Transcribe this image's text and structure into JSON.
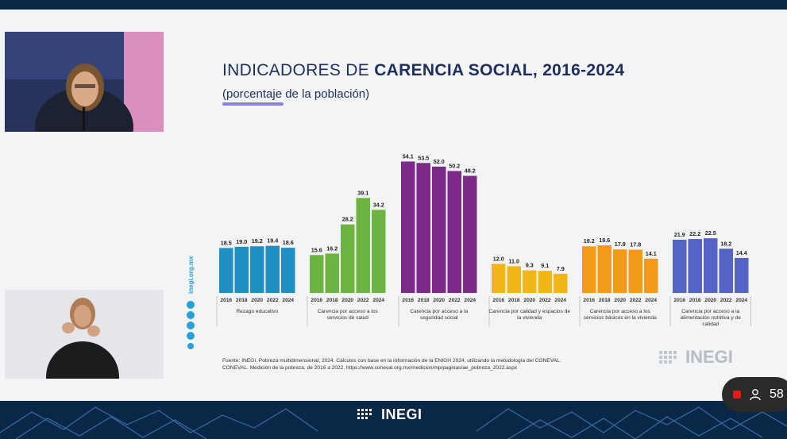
{
  "title": {
    "prefix": "INDICADORES DE ",
    "bold": "CARENCIA SOCIAL, 2016-2024"
  },
  "subtitle": "(porcentaje de la población)",
  "side_url": "inegi.org.mx",
  "source_note": {
    "line1": "Fuente: INEGI. Pobreza multidimensional, 2024. Cálculos con base en la información de la ENIGH 2024, utilizando la metodología del CONEVAL.",
    "line2": "CONEVAL. Medición de la pobreza, de 2016 a 2022. https://www.coneval.org.mx/medicion/mp/paginas/ae_pobreza_2022.aspx"
  },
  "brand": {
    "slide_logo": "INEGI",
    "bottom_logo": "INEGI"
  },
  "viewer_count": "58",
  "colors": {
    "rezago": "#1f8fc4",
    "salud": "#6db33f",
    "seguridad": "#7b2a8a",
    "vivienda": "#f2b619",
    "servicios": "#f39a1a",
    "alimentacion": "#5563c4",
    "title": "#1f2f5c",
    "underline": "#8b7fe6",
    "frame": "#0b2748"
  },
  "chart_data": {
    "type": "bar",
    "title": "",
    "ylim": [
      0,
      60
    ],
    "years": [
      "2016",
      "2018",
      "2020",
      "2022",
      "2024"
    ],
    "groups": [
      {
        "name": "Rezago educativo",
        "label_lines": [
          "Rezago educativo"
        ],
        "color_key": "rezago",
        "values": [
          18.5,
          19.0,
          19.2,
          19.4,
          18.6
        ]
      },
      {
        "name": "Carencia por acceso a los servicios de salud",
        "label_lines": [
          "Carencia por acceso a los",
          "servicios de salud"
        ],
        "color_key": "salud",
        "values": [
          15.6,
          16.2,
          28.2,
          39.1,
          34.2
        ]
      },
      {
        "name": "Carencia por acceso a la seguridad social",
        "label_lines": [
          "Carencia por acceso a la",
          "seguridad social"
        ],
        "color_key": "seguridad",
        "values": [
          54.1,
          53.5,
          52.0,
          50.2,
          48.2
        ]
      },
      {
        "name": "Carencia por calidad y espacios de la vivienda",
        "label_lines": [
          "Carencia por calidad y espacios de",
          "la vivienda"
        ],
        "color_key": "vivienda",
        "values": [
          12.0,
          11.0,
          9.3,
          9.1,
          7.9
        ]
      },
      {
        "name": "Carencia por acceso a los servicios básicos en la vivienda",
        "label_lines": [
          "Carencia por acceso a los",
          "servicios básicos en la vivienda"
        ],
        "color_key": "servicios",
        "values": [
          19.2,
          19.6,
          17.9,
          17.8,
          14.1
        ]
      },
      {
        "name": "Carencia por acceso a la alimentación nutritiva y de calidad",
        "label_lines": [
          "Carencia por acceso a la",
          "alimentación nutritiva y de",
          "calidad"
        ],
        "color_key": "alimentacion",
        "values": [
          21.9,
          22.2,
          22.5,
          18.2,
          14.4
        ]
      }
    ]
  }
}
